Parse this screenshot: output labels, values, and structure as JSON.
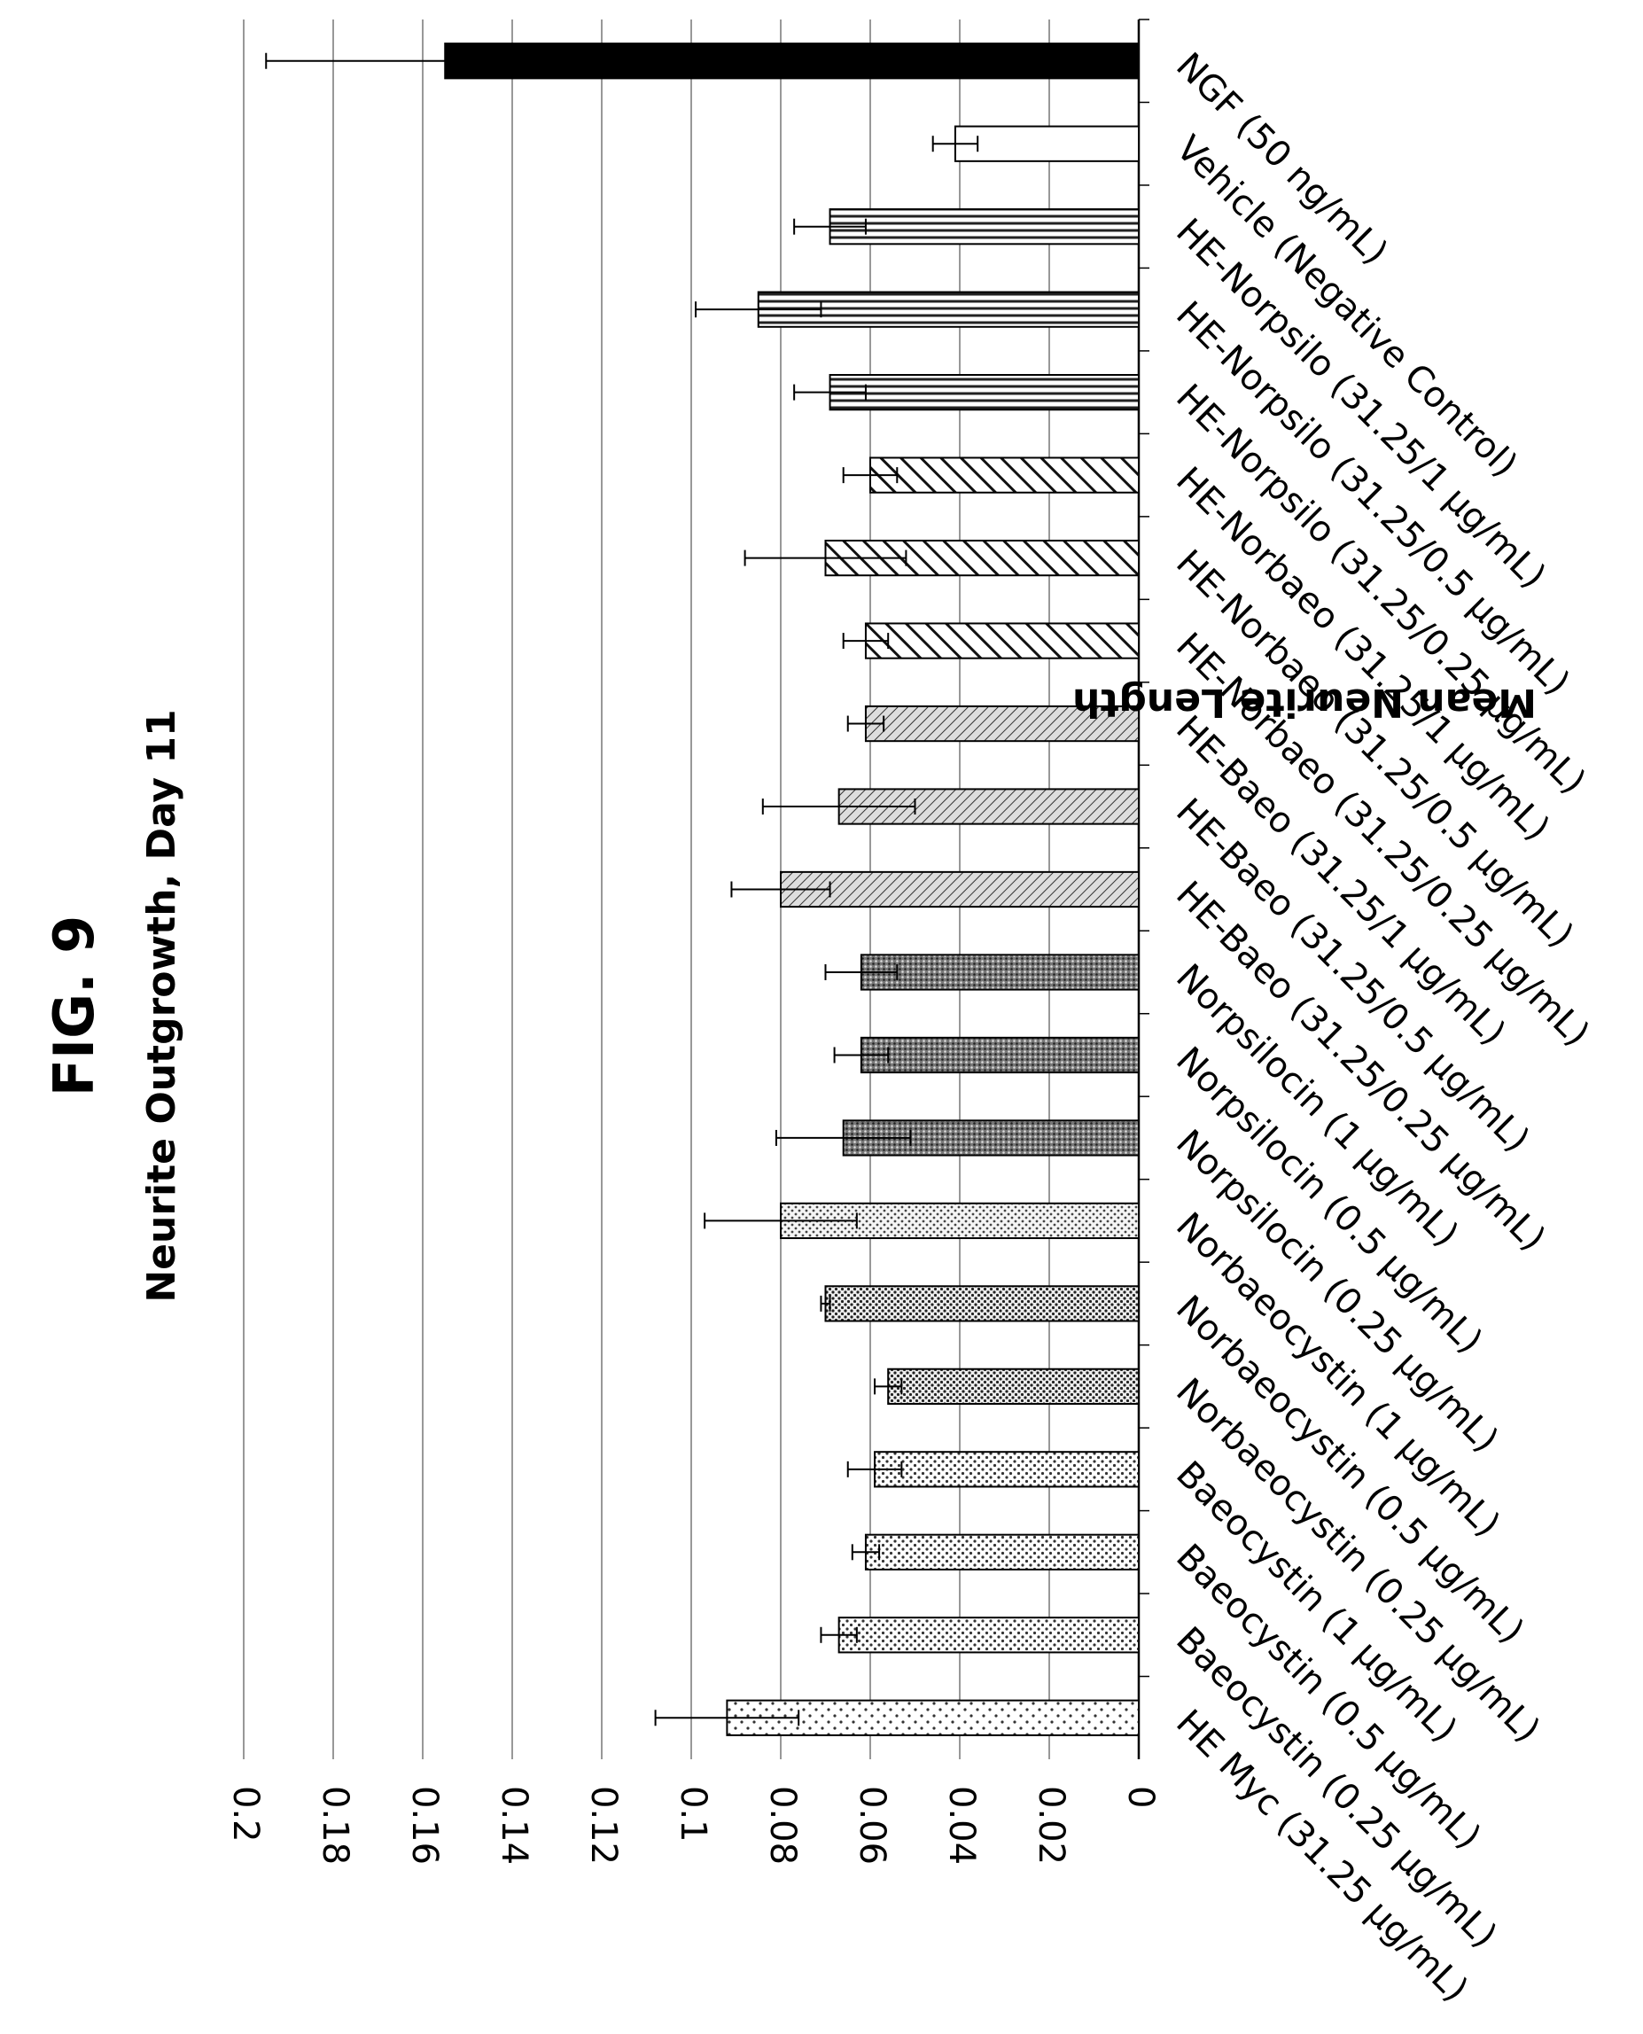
{
  "figure_label": "FIG. 9",
  "chart_data": {
    "type": "bar",
    "orientation": "vertical-bars-rotated-page",
    "title": "Neurite Outgrowth, Day 11",
    "xlabel": "",
    "ylabel": "Mean Neurite Length",
    "ylim": [
      0,
      0.2
    ],
    "yticks": [
      "0",
      "0.02",
      "0.04",
      "0.06",
      "0.08",
      "0.1",
      "0.12",
      "0.14",
      "0.16",
      "0.18",
      "0.2"
    ],
    "grid": true,
    "legend": "none",
    "categories": [
      "HE Myc (31.25 µg/mL)",
      "Baeocystin (0.25 µg/mL)",
      "Baeocystin (0.5 µg/mL)",
      "Baeocystin (1 µg/mL)",
      "Norbaeocystin (0.25 µg/mL)",
      "Norbaeocystin (0.5 µg/mL)",
      "Norbaeocystin (1 µg/mL)",
      "Norpsilocin (0.25 µg/mL)",
      "Norpsilocin (0.5 µg/mL)",
      "Norpsilocin (1 µg/mL)",
      "HE-Baeo (31.25/0.25 µg/mL)",
      "HE-Baeo (31.25/0.5 µg/mL)",
      "HE-Baeo (31.25/1 µg/mL)",
      "HE-Norbaeo (31.25/0.25 µg/mL)",
      "HE-Norbaeo (31.25/0.5 µg/mL)",
      "HE-Norbaeo (31.25/1 µg/mL)",
      "HE-Norpsilo (31.25/0.25 µg/mL)",
      "HE-Norpsilo (31.25/0.5 µg/mL)",
      "HE-Norpsilo (31.25/1 µg/mL)",
      "Vehicle (Negative Control)",
      "NGF (50 ng/mL)"
    ],
    "values": [
      0.092,
      0.067,
      0.061,
      0.059,
      0.056,
      0.07,
      0.08,
      0.066,
      0.062,
      0.062,
      0.08,
      0.067,
      0.061,
      0.061,
      0.07,
      0.06,
      0.069,
      0.085,
      0.069,
      0.041,
      0.155
    ],
    "errors": [
      0.016,
      0.004,
      0.003,
      0.006,
      0.003,
      0.001,
      0.017,
      0.015,
      0.006,
      0.008,
      0.011,
      0.017,
      0.004,
      0.005,
      0.018,
      0.006,
      0.008,
      0.014,
      0.008,
      0.005,
      0.04
    ],
    "fills": [
      "dots-sparse",
      "dots",
      "dots",
      "dots",
      "dots-dense",
      "dots-dense",
      "dots-medium",
      "grain-dark",
      "grain-dark",
      "grain-dark",
      "diag-fine",
      "diag-fine",
      "diag-fine",
      "diag-wide",
      "diag-wide",
      "diag-wide",
      "vertical-lines",
      "vertical-lines",
      "vertical-lines",
      "white",
      "black"
    ]
  }
}
